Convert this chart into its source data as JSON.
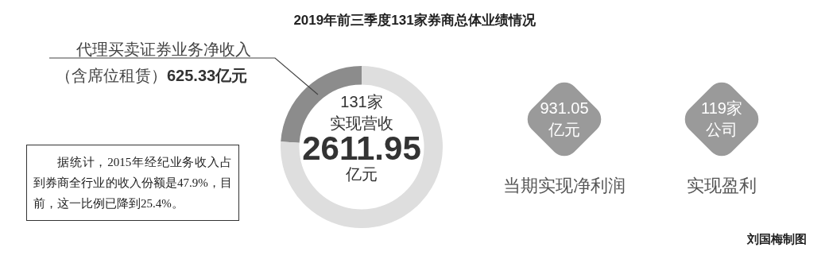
{
  "chart_data": {
    "type": "donut",
    "title": "2019年前三季度131家券商总体业绩情况",
    "categories": [
      "代理买卖证券业务净收入（含席位租赁）",
      null
    ],
    "values": [
      625.33,
      1986.62
    ],
    "colors": [
      "#8c8c8c",
      "#dedede"
    ],
    "value_labels": [
      "625.33亿元",
      null
    ],
    "legend": false,
    "annotations": [
      "131家",
      "实现营收",
      "2611.95",
      "亿元",
      "931.05",
      "亿元",
      "当期实现净利润",
      "119家",
      "公司",
      "实现盈利",
      "据统计，2015年经纪业务收入占到券商全行业的收入份额是47.9%，目前，这一比例已降到25.4%。",
      "刘国梅制图"
    ]
  }
}
